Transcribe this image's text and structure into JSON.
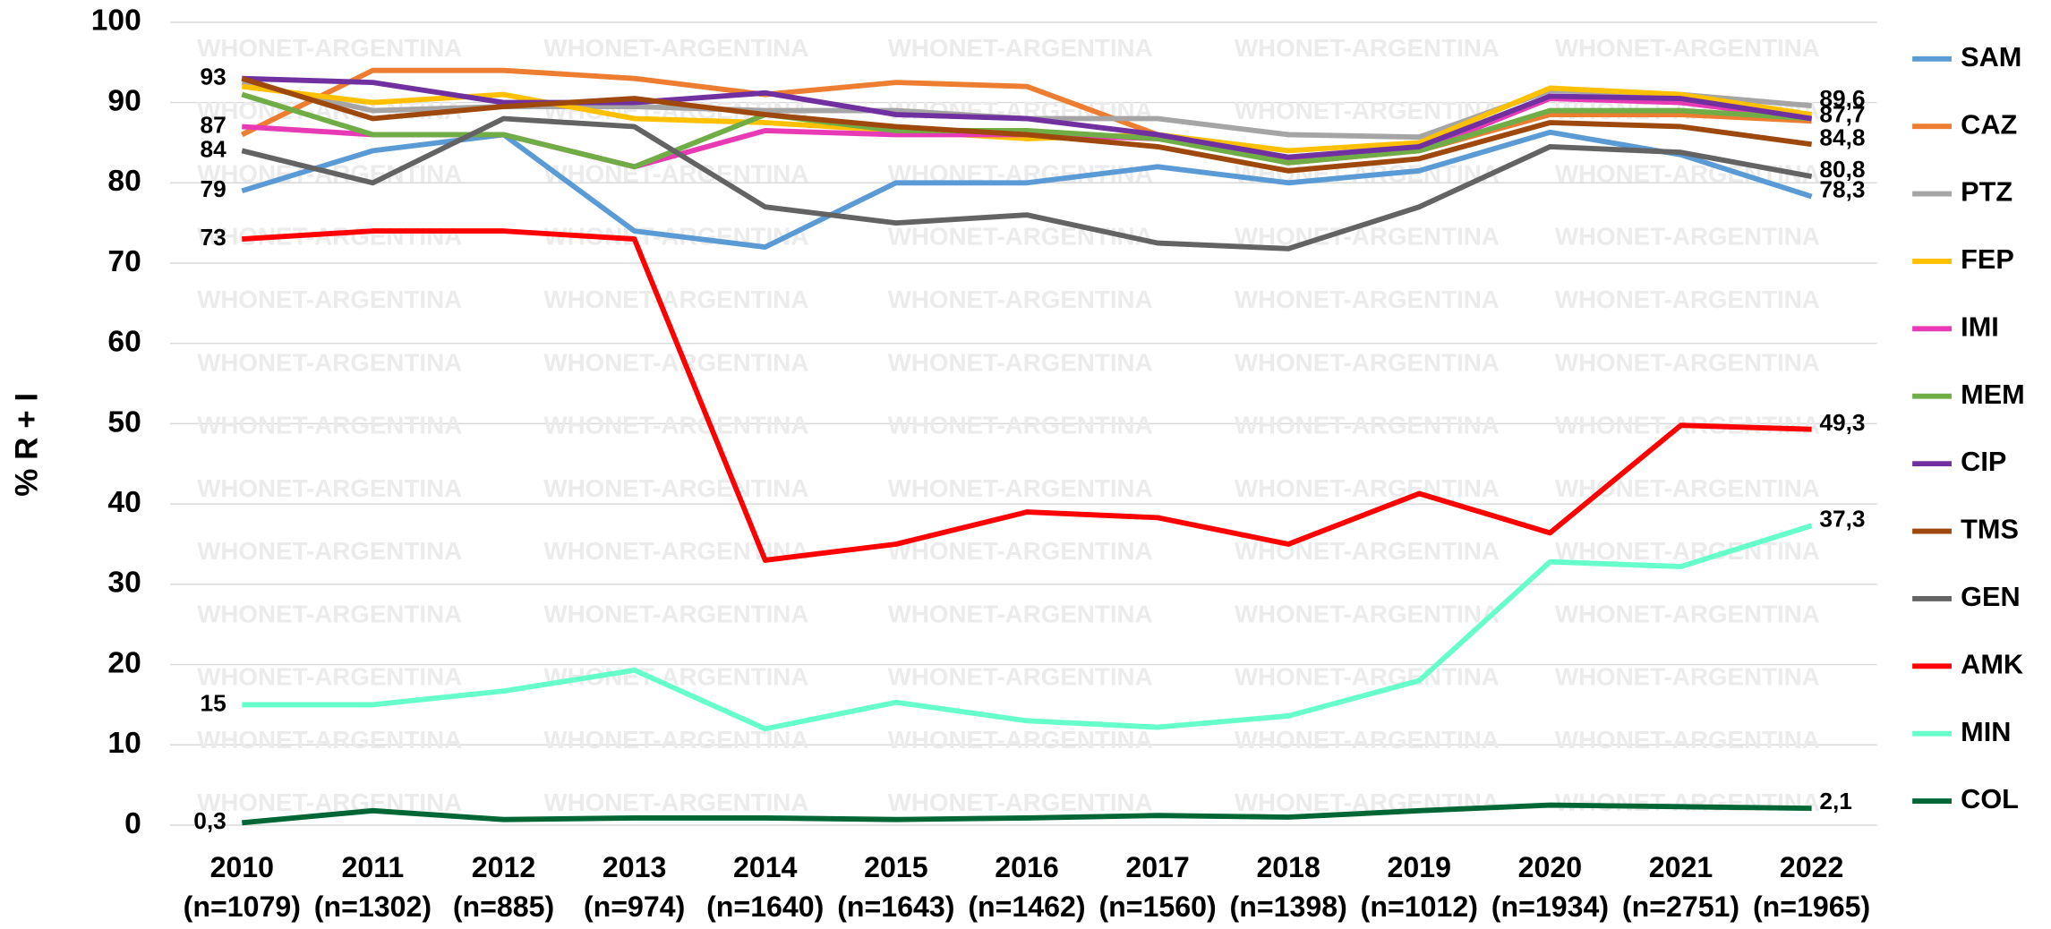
{
  "chart_data": {
    "type": "line",
    "y_label": "% R + I",
    "watermark": "WHONET-ARGENTINA",
    "categories": [
      "2010",
      "2011",
      "2012",
      "2013",
      "2014",
      "2015",
      "2016",
      "2017",
      "2018",
      "2019",
      "2020",
      "2021",
      "2022"
    ],
    "category_sublabels": [
      "(n=1079)",
      "(n=1302)",
      "(n=885)",
      "(n=974)",
      "(n=1640)",
      "(n=1643)",
      "(n=1462)",
      "(n=1560)",
      "(n=1398)",
      "(n=1012)",
      "(n=1934)",
      "(n=2751)",
      "(n=1965)"
    ],
    "ylim": [
      0,
      100
    ],
    "yticks": [
      0,
      10,
      20,
      30,
      40,
      50,
      60,
      70,
      80,
      90,
      100
    ],
    "grid": true,
    "legend": "right",
    "series": [
      {
        "name": "SAM",
        "color": "#5b9bd5",
        "values": [
          79,
          84,
          86,
          74,
          72,
          80,
          80,
          82,
          80,
          81.5,
          86.3,
          83.5,
          78.3
        ],
        "value_labels": [
          "79",
          null,
          null,
          null,
          null,
          null,
          null,
          null,
          null,
          null,
          null,
          null,
          "78,3"
        ]
      },
      {
        "name": "CAZ",
        "color": "#ed7d31",
        "values": [
          86,
          94,
          94,
          93,
          91,
          92.5,
          92,
          86,
          82.5,
          84,
          88.5,
          88.5,
          87.7
        ],
        "value_labels": [
          null,
          null,
          null,
          null,
          null,
          null,
          null,
          null,
          null,
          null,
          null,
          null,
          "87,7"
        ]
      },
      {
        "name": "PTZ",
        "color": "#a5a5a5",
        "values": [
          92.5,
          89,
          89.5,
          89.5,
          89,
          89,
          88,
          88,
          86,
          85.7,
          91.5,
          91,
          89.6
        ],
        "value_labels": [
          null,
          null,
          null,
          null,
          null,
          null,
          null,
          null,
          null,
          null,
          null,
          null,
          "89,6"
        ]
      },
      {
        "name": "FEP",
        "color": "#ffc000",
        "values": [
          92,
          90,
          91,
          88,
          87.5,
          86.5,
          85.5,
          86,
          84,
          85,
          91.8,
          91,
          88.5
        ]
      },
      {
        "name": "IMI",
        "color": "#e83ab5",
        "values": [
          87,
          86,
          86,
          82,
          86.5,
          86,
          86,
          85.5,
          83,
          84,
          90.5,
          90,
          88
        ],
        "value_labels": [
          "87",
          null,
          null,
          null,
          null,
          null,
          null,
          null,
          null,
          null,
          null,
          null,
          null
        ]
      },
      {
        "name": "MEM",
        "color": "#70ad47",
        "values": [
          91,
          86,
          86,
          82,
          88.5,
          86.5,
          86.5,
          85.5,
          82.5,
          84,
          89,
          89,
          88
        ]
      },
      {
        "name": "CIP",
        "color": "#7030a0",
        "values": [
          93,
          92.5,
          90,
          90,
          91.2,
          88.5,
          88,
          86,
          83.2,
          84.5,
          90.8,
          90.5,
          88
        ],
        "value_labels": [
          "93",
          null,
          null,
          null,
          null,
          null,
          null,
          null,
          null,
          null,
          null,
          null,
          null
        ]
      },
      {
        "name": "TMS",
        "color": "#9e480e",
        "values": [
          93,
          88,
          89.5,
          90.5,
          88.5,
          87,
          86,
          84.5,
          81.5,
          83,
          87.5,
          87,
          84.8
        ],
        "value_labels": [
          null,
          null,
          null,
          null,
          null,
          null,
          null,
          null,
          null,
          null,
          null,
          null,
          "84,8"
        ]
      },
      {
        "name": "GEN",
        "color": "#636363",
        "values": [
          84,
          80,
          88,
          87,
          77,
          75,
          76,
          72.5,
          71.8,
          77,
          84.5,
          83.8,
          80.8
        ],
        "value_labels": [
          "84",
          null,
          null,
          null,
          null,
          null,
          null,
          null,
          null,
          null,
          null,
          null,
          "80,8"
        ]
      },
      {
        "name": "AMK",
        "color": "#ff0000",
        "values": [
          73,
          74,
          74,
          73,
          33,
          35,
          39,
          38.3,
          35,
          41.3,
          36.4,
          49.8,
          49.3
        ],
        "value_labels": [
          "73",
          null,
          null,
          null,
          null,
          null,
          null,
          null,
          null,
          null,
          null,
          null,
          "49,3"
        ]
      },
      {
        "name": "MIN",
        "color": "#66ffcc",
        "values": [
          15,
          15,
          16.7,
          19.3,
          12,
          15.3,
          13,
          12.2,
          13.6,
          18,
          32.8,
          32.2,
          37.3
        ],
        "value_labels": [
          "15",
          null,
          null,
          null,
          null,
          null,
          null,
          null,
          null,
          null,
          null,
          null,
          "37,3"
        ]
      },
      {
        "name": "COL",
        "color": "#006633",
        "values": [
          0.3,
          1.8,
          0.7,
          0.9,
          0.9,
          0.7,
          0.9,
          1.2,
          1,
          1.8,
          2.5,
          2.3,
          2.1
        ],
        "value_labels": [
          "0,3",
          null,
          null,
          null,
          null,
          null,
          null,
          null,
          null,
          null,
          null,
          null,
          "2,1"
        ]
      }
    ]
  }
}
